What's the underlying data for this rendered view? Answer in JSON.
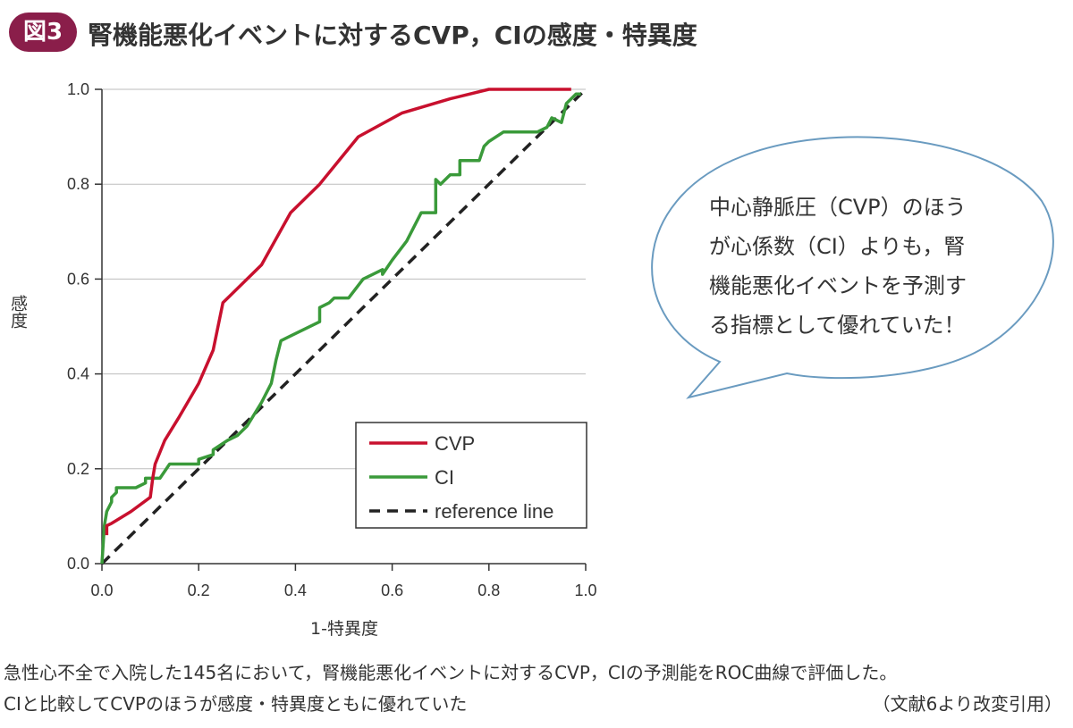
{
  "figure": {
    "badge": "図3",
    "title": "腎機能悪化イベントに対するCVP，CIの感度・特異度"
  },
  "callout": {
    "lines": [
      "中心静脈圧（CVP）のほう",
      "が心係数（CI）よりも，腎",
      "機能悪化イベントを予測す",
      "る指標として優れていた！"
    ]
  },
  "caption": {
    "line1": "急性心不全で入院した145名において，腎機能悪化イベントに対するCVP，CIの予測能をROC曲線で評価した。",
    "line2": "CIと比較してCVPのほうが感度・特異度ともに優れていた",
    "source": "（文献6より改変引用）"
  },
  "colors": {
    "cvp": "#c8102e",
    "ci": "#3a9a3a",
    "reference": "#222222",
    "badge": "#8a1e4a",
    "bubble_border": "#6a9bc0"
  },
  "chart_data": {
    "type": "line",
    "xlabel": "1-特異度",
    "ylabel": "感度",
    "xlim": [
      0,
      1
    ],
    "ylim": [
      0,
      1
    ],
    "x_ticks": [
      "0.0",
      "0.2",
      "0.4",
      "0.6",
      "0.8",
      "1.0"
    ],
    "y_ticks": [
      "0.0",
      "0.2",
      "0.4",
      "0.6",
      "0.8",
      "1.0"
    ],
    "grid": "horizontal",
    "legend_position": "bottom-right",
    "series": [
      {
        "name": "CVP",
        "style": "solid",
        "x": [
          0.01,
          0.01,
          0.02,
          0.06,
          0.1,
          0.105,
          0.11,
          0.13,
          0.16,
          0.2,
          0.23,
          0.25,
          0.28,
          0.33,
          0.39,
          0.45,
          0.53,
          0.62,
          0.72,
          0.8,
          0.97
        ],
        "y": [
          0.06,
          0.08,
          0.085,
          0.11,
          0.14,
          0.18,
          0.21,
          0.26,
          0.31,
          0.38,
          0.45,
          0.55,
          0.58,
          0.63,
          0.74,
          0.8,
          0.9,
          0.95,
          0.98,
          1.0,
          1.0
        ]
      },
      {
        "name": "CI",
        "style": "solid",
        "x": [
          0.0,
          0.005,
          0.01,
          0.02,
          0.02,
          0.03,
          0.03,
          0.07,
          0.09,
          0.09,
          0.12,
          0.14,
          0.19,
          0.2,
          0.2,
          0.23,
          0.23,
          0.26,
          0.28,
          0.29,
          0.3,
          0.33,
          0.35,
          0.36,
          0.37,
          0.39,
          0.45,
          0.45,
          0.47,
          0.48,
          0.51,
          0.54,
          0.58,
          0.58,
          0.6,
          0.63,
          0.66,
          0.69,
          0.69,
          0.7,
          0.72,
          0.74,
          0.74,
          0.78,
          0.79,
          0.8,
          0.83,
          0.9,
          0.92,
          0.93,
          0.95,
          0.96,
          0.97,
          0.98,
          0.99
        ],
        "y": [
          0.0,
          0.08,
          0.11,
          0.13,
          0.14,
          0.15,
          0.16,
          0.16,
          0.17,
          0.18,
          0.18,
          0.21,
          0.21,
          0.21,
          0.22,
          0.23,
          0.24,
          0.26,
          0.27,
          0.28,
          0.29,
          0.34,
          0.38,
          0.43,
          0.47,
          0.48,
          0.51,
          0.54,
          0.55,
          0.56,
          0.56,
          0.6,
          0.62,
          0.61,
          0.64,
          0.68,
          0.74,
          0.74,
          0.81,
          0.8,
          0.82,
          0.82,
          0.85,
          0.85,
          0.88,
          0.89,
          0.91,
          0.91,
          0.92,
          0.94,
          0.93,
          0.97,
          0.98,
          0.99,
          0.99
        ]
      },
      {
        "name": "reference line",
        "style": "dashed",
        "x": [
          0,
          1
        ],
        "y": [
          0,
          1
        ]
      }
    ]
  }
}
